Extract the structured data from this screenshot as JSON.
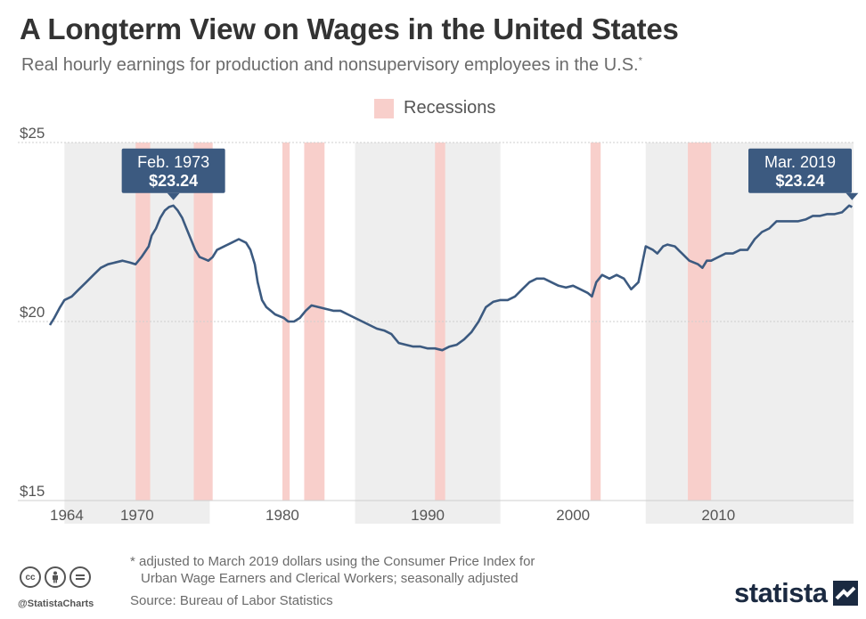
{
  "header": {
    "title": "A Longterm View on Wages in the United States",
    "subtitle": "Real hourly earnings for production and nonsupervisory employees in the U.S.",
    "subtitle_mark": "*"
  },
  "legend": {
    "recessions_label": "Recessions",
    "recession_color": "#f8cfcb"
  },
  "footer": {
    "footnote_line1": "* adjusted to March 2019 dollars using the Consumer Price Index for",
    "footnote_line2": "Urban Wage Earners and Clerical Workers; seasonally adjusted",
    "source": "Source: Bureau of Labor Statistics",
    "handle": "@StatistaCharts",
    "brand": "statista",
    "cc_icons": [
      "cc-icon",
      "attribution-icon",
      "no-derivatives-icon"
    ]
  },
  "chart_data": {
    "type": "line",
    "title": "A Longterm View on Wages in the United States",
    "subtitle": "Real hourly earnings for production and nonsupervisory employees in the U.S.",
    "xlim": [
      1964.0,
      2019.3
    ],
    "ylim": [
      15,
      25
    ],
    "y_ticks": [
      15,
      20,
      25
    ],
    "y_tick_labels": [
      "$15",
      "$20",
      "$25"
    ],
    "x_tick_labels": [
      {
        "value": 1964,
        "label": "1964"
      },
      {
        "value": 1970,
        "label": "1970"
      },
      {
        "value": 1980,
        "label": "1980"
      },
      {
        "value": 1990,
        "label": "1990"
      },
      {
        "value": 2000,
        "label": "2000"
      },
      {
        "value": 2010,
        "label": "2010"
      }
    ],
    "decade_shading": [
      [
        1965.0,
        1975.0
      ],
      [
        1985.0,
        1995.0
      ],
      [
        2005.0,
        2019.3
      ]
    ],
    "shading_color": "#eeeeee",
    "recessions": [
      [
        1969.9,
        1970.9
      ],
      [
        1973.9,
        1975.2
      ],
      [
        1980.0,
        1980.5
      ],
      [
        1981.5,
        1982.9
      ],
      [
        1990.5,
        1991.2
      ],
      [
        2001.2,
        2001.9
      ],
      [
        2007.9,
        2009.5
      ]
    ],
    "line_color": "#3c5a80",
    "series": [
      {
        "x": [
          1964.0,
          1964.3,
          1964.7,
          1965.0,
          1965.5,
          1966.0,
          1966.5,
          1967.0,
          1967.5,
          1968.0,
          1968.5,
          1969.0,
          1969.5,
          1969.9,
          1970.3,
          1970.8,
          1971.0,
          1971.3,
          1971.6,
          1971.9,
          1972.2,
          1972.5,
          1972.8,
          1973.1,
          1973.4,
          1973.7,
          1974.0,
          1974.3,
          1974.6,
          1974.9,
          1975.2,
          1975.5,
          1976.0,
          1976.5,
          1977.0,
          1977.5,
          1977.8,
          1978.1,
          1978.3,
          1978.6,
          1978.9,
          1979.2,
          1979.5,
          1979.8,
          1980.1,
          1980.4,
          1980.8,
          1981.2,
          1981.6,
          1982.0,
          1982.5,
          1983.0,
          1983.5,
          1984.0,
          1984.5,
          1985.0,
          1985.5,
          1986.0,
          1986.5,
          1987.0,
          1987.5,
          1988.0,
          1988.5,
          1989.0,
          1989.5,
          1990.0,
          1990.5,
          1991.0,
          1991.5,
          1992.0,
          1992.5,
          1993.0,
          1993.5,
          1994.0,
          1994.5,
          1995.0,
          1995.5,
          1996.0,
          1996.5,
          1997.0,
          1997.5,
          1998.0,
          1998.5,
          1999.0,
          1999.5,
          2000.0,
          2000.5,
          2001.0,
          2001.3,
          2001.6,
          2002.0,
          2002.5,
          2003.0,
          2003.5,
          2004.0,
          2004.5,
          2005.0,
          2005.5,
          2005.8,
          2006.0,
          2006.2,
          2006.5,
          2007.0,
          2007.5,
          2008.0,
          2008.3,
          2008.6,
          2008.9,
          2009.2,
          2009.5,
          2010.0,
          2010.5,
          2011.0,
          2011.5,
          2012.0,
          2012.5,
          2013.0,
          2013.5,
          2014.0,
          2014.5,
          2015.0,
          2015.5,
          2016.0,
          2016.5,
          2017.0,
          2017.5,
          2018.0,
          2018.5,
          2019.0,
          2019.2
        ],
        "y": [
          19.9,
          20.1,
          20.4,
          20.6,
          20.7,
          20.9,
          21.1,
          21.3,
          21.5,
          21.6,
          21.65,
          21.7,
          21.65,
          21.6,
          21.8,
          22.1,
          22.4,
          22.6,
          22.9,
          23.1,
          23.2,
          23.24,
          23.1,
          22.9,
          22.6,
          22.3,
          22.0,
          21.8,
          21.75,
          21.7,
          21.8,
          22.0,
          22.1,
          22.2,
          22.3,
          22.2,
          22.0,
          21.6,
          21.1,
          20.6,
          20.4,
          20.3,
          20.2,
          20.15,
          20.1,
          20.0,
          20.0,
          20.1,
          20.3,
          20.45,
          20.4,
          20.35,
          20.3,
          20.3,
          20.2,
          20.1,
          20.0,
          19.9,
          19.8,
          19.75,
          19.65,
          19.4,
          19.35,
          19.3,
          19.3,
          19.25,
          19.25,
          19.2,
          19.3,
          19.35,
          19.5,
          19.7,
          20.0,
          20.4,
          20.55,
          20.6,
          20.6,
          20.7,
          20.9,
          21.1,
          21.2,
          21.2,
          21.1,
          21.0,
          20.95,
          21.0,
          20.9,
          20.8,
          20.7,
          21.1,
          21.3,
          21.2,
          21.3,
          21.2,
          20.9,
          21.1,
          22.1,
          22.0,
          21.9,
          22.0,
          22.1,
          22.15,
          22.1,
          21.9,
          21.7,
          21.65,
          21.6,
          21.5,
          21.7,
          21.7,
          21.8,
          21.9,
          21.9,
          22.0,
          22.0,
          22.3,
          22.5,
          22.6,
          22.8,
          22.8,
          22.8,
          22.8,
          22.85,
          22.95,
          22.95,
          23.0,
          23.0,
          23.05,
          23.24,
          23.2
        ]
      }
    ],
    "annotations": [
      {
        "x": 1972.5,
        "y": 23.24,
        "label_top": "Feb. 1973",
        "label_bottom": "$23.24"
      },
      {
        "x": 2019.2,
        "y": 23.24,
        "label_top": "Mar. 2019",
        "label_bottom": "$23.24"
      }
    ]
  }
}
